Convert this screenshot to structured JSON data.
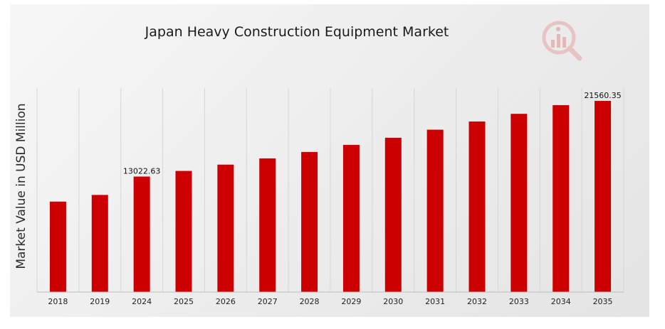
{
  "chart_data": {
    "type": "bar",
    "title": "Japan Heavy Construction Equipment Market",
    "xlabel": "",
    "ylabel": "Market Value in USD Million",
    "categories": [
      "2018",
      "2019",
      "2024",
      "2025",
      "2026",
      "2027",
      "2028",
      "2029",
      "2030",
      "2031",
      "2032",
      "2033",
      "2034",
      "2035"
    ],
    "series": [
      {
        "values": [
          10200,
          10950,
          13022.63,
          13660,
          14370,
          15070,
          15800,
          16600,
          17400,
          18310,
          19230,
          20100,
          21080,
          21560.35
        ]
      }
    ],
    "data_labels": [
      {
        "category": "2024",
        "text": "13022.63"
      },
      {
        "category": "2035",
        "text": "21560.35"
      }
    ],
    "ylim": [
      0,
      23000
    ],
    "grid": "vertical",
    "legend": "none",
    "bar_color": "#cc0000"
  }
}
